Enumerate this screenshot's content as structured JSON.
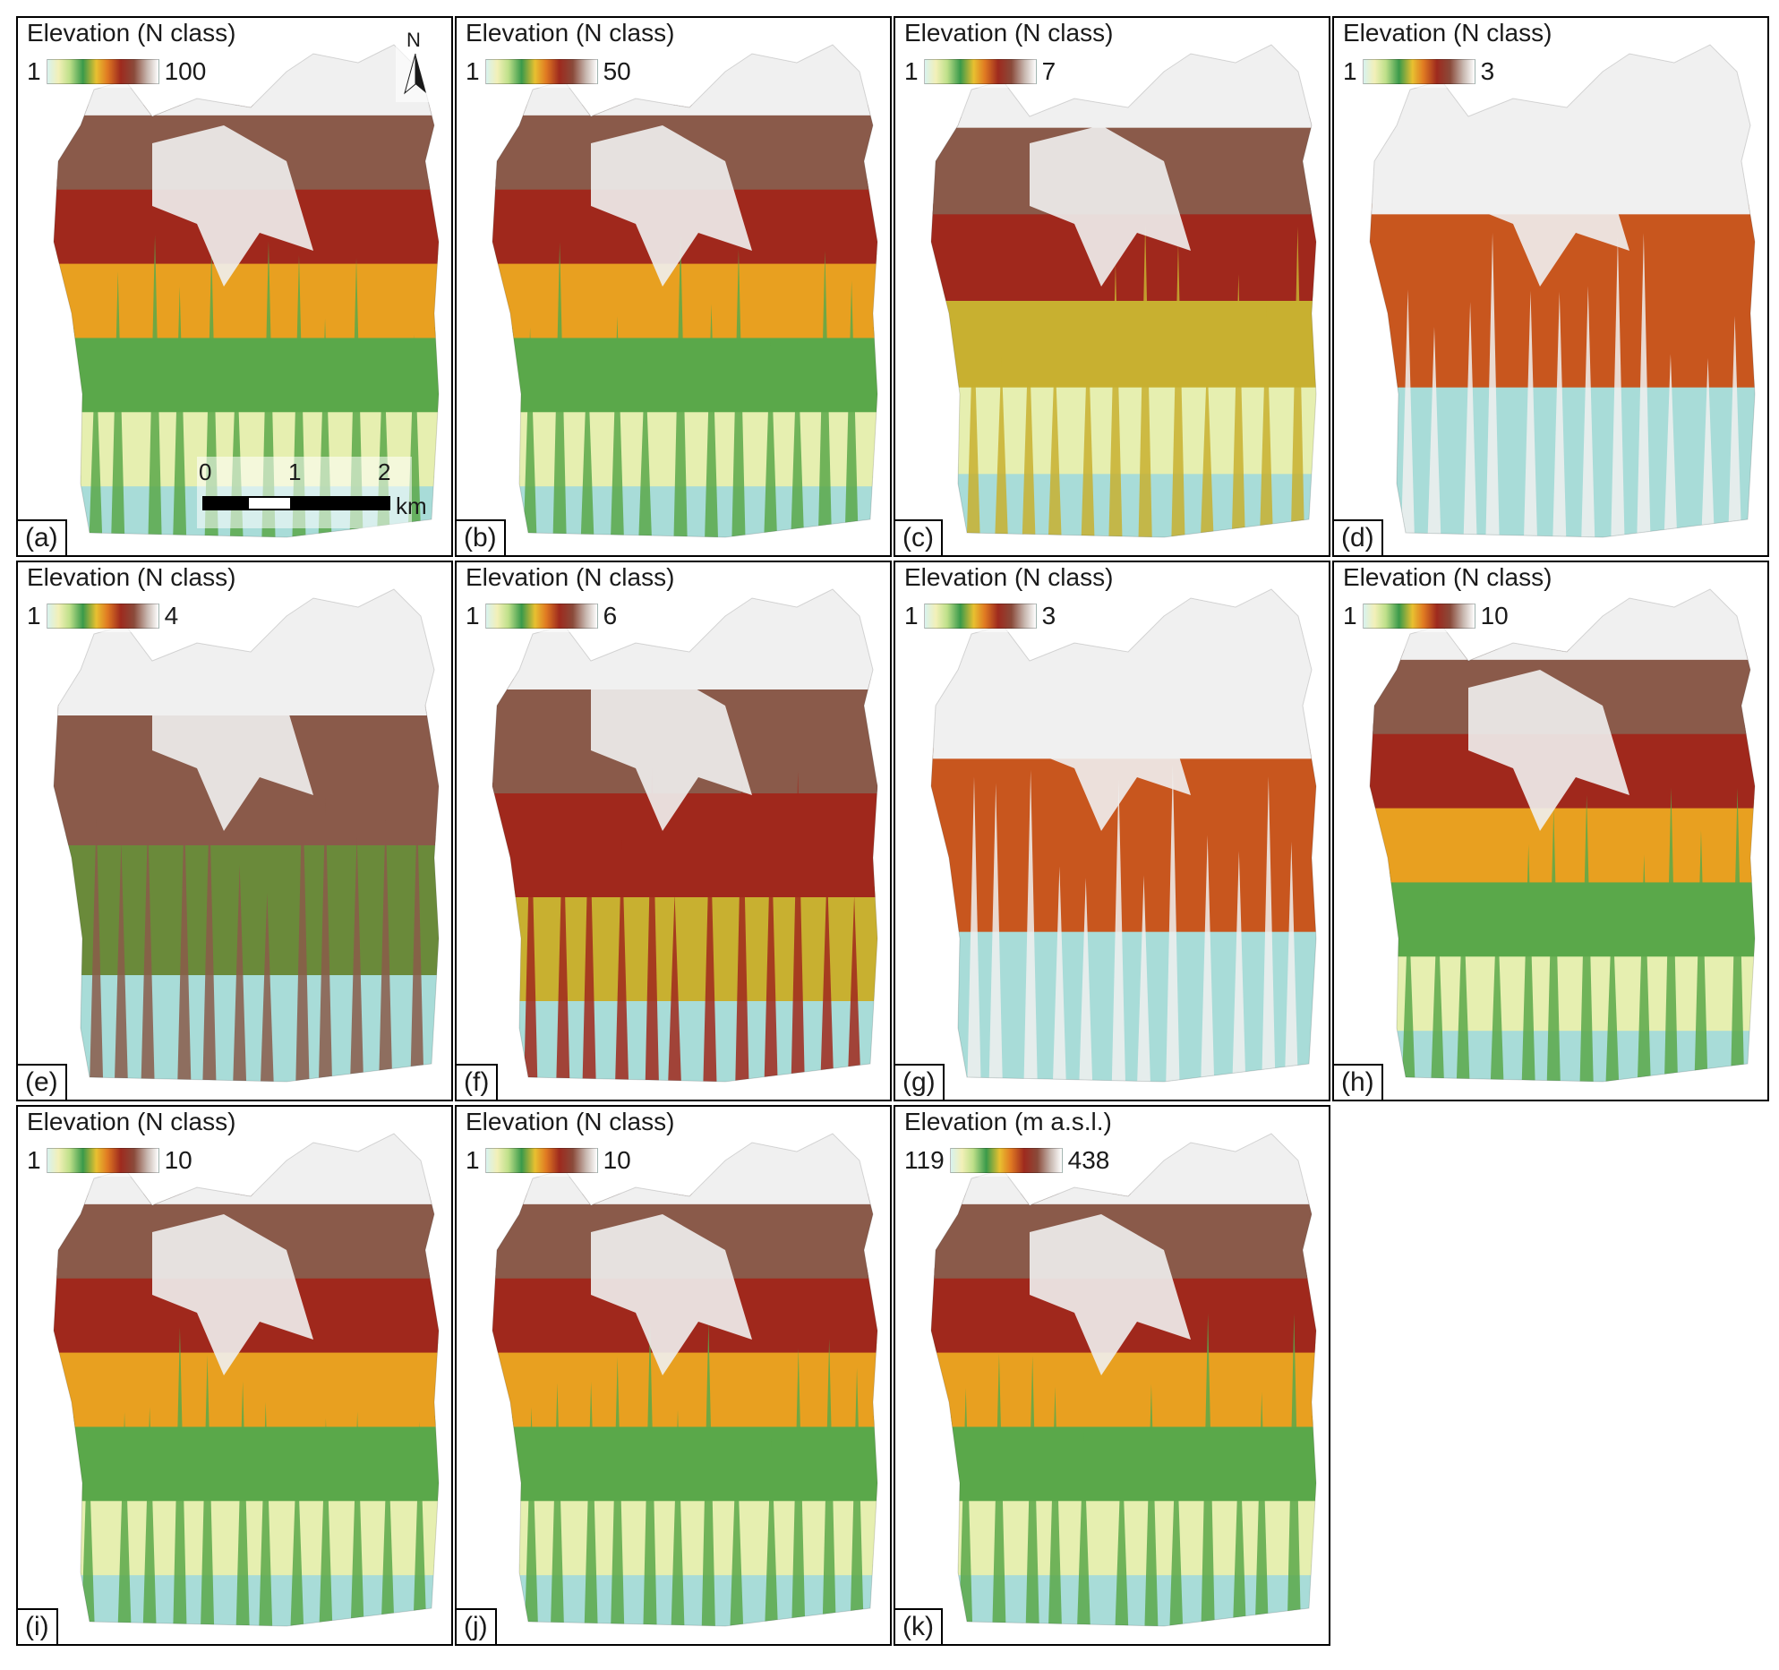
{
  "panels": [
    {
      "label": "(a)",
      "legend_title": "Elevation (N class)",
      "legend_min": "1",
      "legend_max": "100",
      "tone": 0.55,
      "north_arrow": "N",
      "scale": {
        "ticks": [
          "0",
          "1",
          "2"
        ],
        "unit": "km"
      }
    },
    {
      "label": "(b)",
      "legend_title": "Elevation (N class)",
      "legend_min": "1",
      "legend_max": "50",
      "tone": 0.45
    },
    {
      "label": "(c)",
      "legend_title": "Elevation (N class)",
      "legend_min": "1",
      "legend_max": "7",
      "tone": 0.4
    },
    {
      "label": "(d)",
      "legend_title": "Elevation (N class)",
      "legend_min": "1",
      "legend_max": "3",
      "tone": 0.6
    },
    {
      "label": "(e)",
      "legend_title": "Elevation (N class)",
      "legend_min": "1",
      "legend_max": "4",
      "tone": 0.5
    },
    {
      "label": "(f)",
      "legend_title": "Elevation (N class)",
      "legend_min": "1",
      "legend_max": "6",
      "tone": 0.5
    },
    {
      "label": "(g)",
      "legend_title": "Elevation (N class)",
      "legend_min": "1",
      "legend_max": "3",
      "tone": 0.6
    },
    {
      "label": "(h)",
      "legend_title": "Elevation (N class)",
      "legend_min": "1",
      "legend_max": "10",
      "tone": 0.45
    },
    {
      "label": "(i)",
      "legend_title": "Elevation (N class)",
      "legend_min": "1",
      "legend_max": "10",
      "tone": 0.55
    },
    {
      "label": "(j)",
      "legend_title": "Elevation (N class)",
      "legend_min": "1",
      "legend_max": "10",
      "tone": 0.55
    },
    {
      "label": "(k)",
      "legend_title": "Elevation (m a.s.l.)",
      "legend_min": "119",
      "legend_max": "438",
      "tone": 0.5
    }
  ],
  "colors": {
    "lowland": "#a8dcd8",
    "low": "#e6efb0",
    "mid_low": "#5aa84a",
    "mid": "#e8a020",
    "mid_high": "#a0281c",
    "high": "#8a5a4a",
    "peak": "#f0f0f0",
    "class_orange": "#c8561e",
    "class_olive": "#6a8a3a",
    "class_yellow": "#c8b030",
    "border": "#000000"
  }
}
